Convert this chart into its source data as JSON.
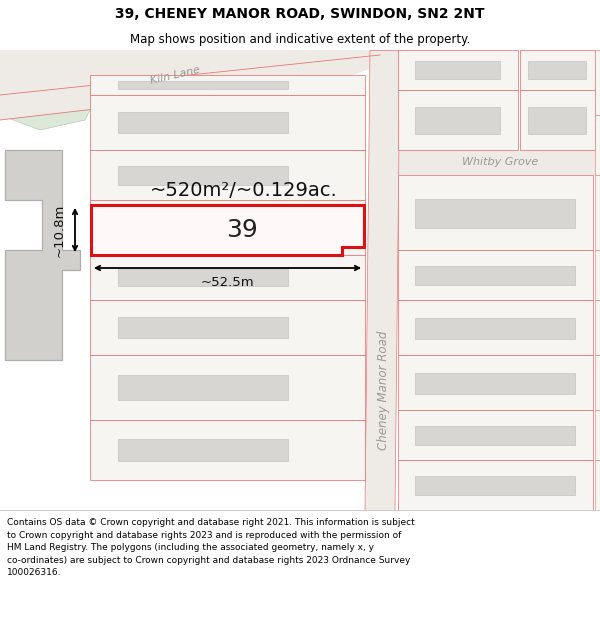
{
  "title": "39, CHENEY MANOR ROAD, SWINDON, SN2 2NT",
  "subtitle": "Map shows position and indicative extent of the property.",
  "footer_text": "Contains OS data © Crown copyright and database right 2021. This information is subject\nto Crown copyright and database rights 2023 and is reproduced with the permission of\nHM Land Registry. The polygons (including the associated geometry, namely x, y\nco-ordinates) are subject to Crown copyright and database rights 2023 Ordnance Survey\n100026316.",
  "map_bg": "#f7f5f2",
  "plot_line": "#e87575",
  "hi_line": "#dd1111",
  "bld_fill": "#d8d6d2",
  "bld_line": "#c5c3bf",
  "road_fill": "#eeebe6",
  "green_fill": "#dce8d8",
  "green_edge": "#b8ccb4",
  "gray_fill": "#d2d0cc",
  "gray_edge": "#b0aeaa",
  "area_text": "~520m²/~0.129ac.",
  "width_text": "~52.5m",
  "height_text": "~10.8m",
  "number_text": "39",
  "label_cheney": "Cheney Manor Road",
  "label_kiln": "Kiln Lane",
  "label_whitby": "Whitby Grove",
  "title_fontsize": 10,
  "subtitle_fontsize": 8.5,
  "footer_fontsize": 6.5
}
